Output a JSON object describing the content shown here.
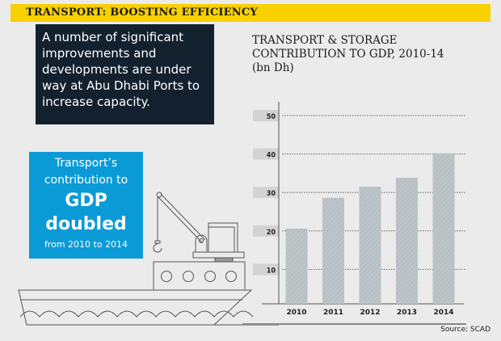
{
  "header": {
    "title": "TRANSPORT: BOOSTING EFFICIENCY",
    "accent": "#f9d100"
  },
  "intro": {
    "text": "A number of significant improvements and developments are under way at Abu Dhabi Ports to increase capacity."
  },
  "callout": {
    "line1": "Transport’s",
    "line2": "contribution to",
    "line3": "GDP",
    "line4": "doubled",
    "line5": "from 2010 to 2014",
    "color": "#0a9ad6"
  },
  "illustration": {
    "icon": "ship-with-crane-icon"
  },
  "chart_data": {
    "type": "bar",
    "title": "TRANSPORT & STORAGE CONTRIBUTION TO GDP, 2010-14",
    "subtitle": "(bn Dh)",
    "categories": [
      "2010",
      "2011",
      "2012",
      "2013",
      "2014"
    ],
    "values": [
      20.6,
      28.6,
      31.5,
      33.8,
      40.2
    ],
    "yticks": [
      10,
      20,
      30,
      40,
      50
    ],
    "ylim": [
      0,
      50
    ],
    "grid": true,
    "bar_color": "#c3c3c3",
    "hatch_color": "#7fbfdc",
    "source": "Source: SCAD"
  }
}
